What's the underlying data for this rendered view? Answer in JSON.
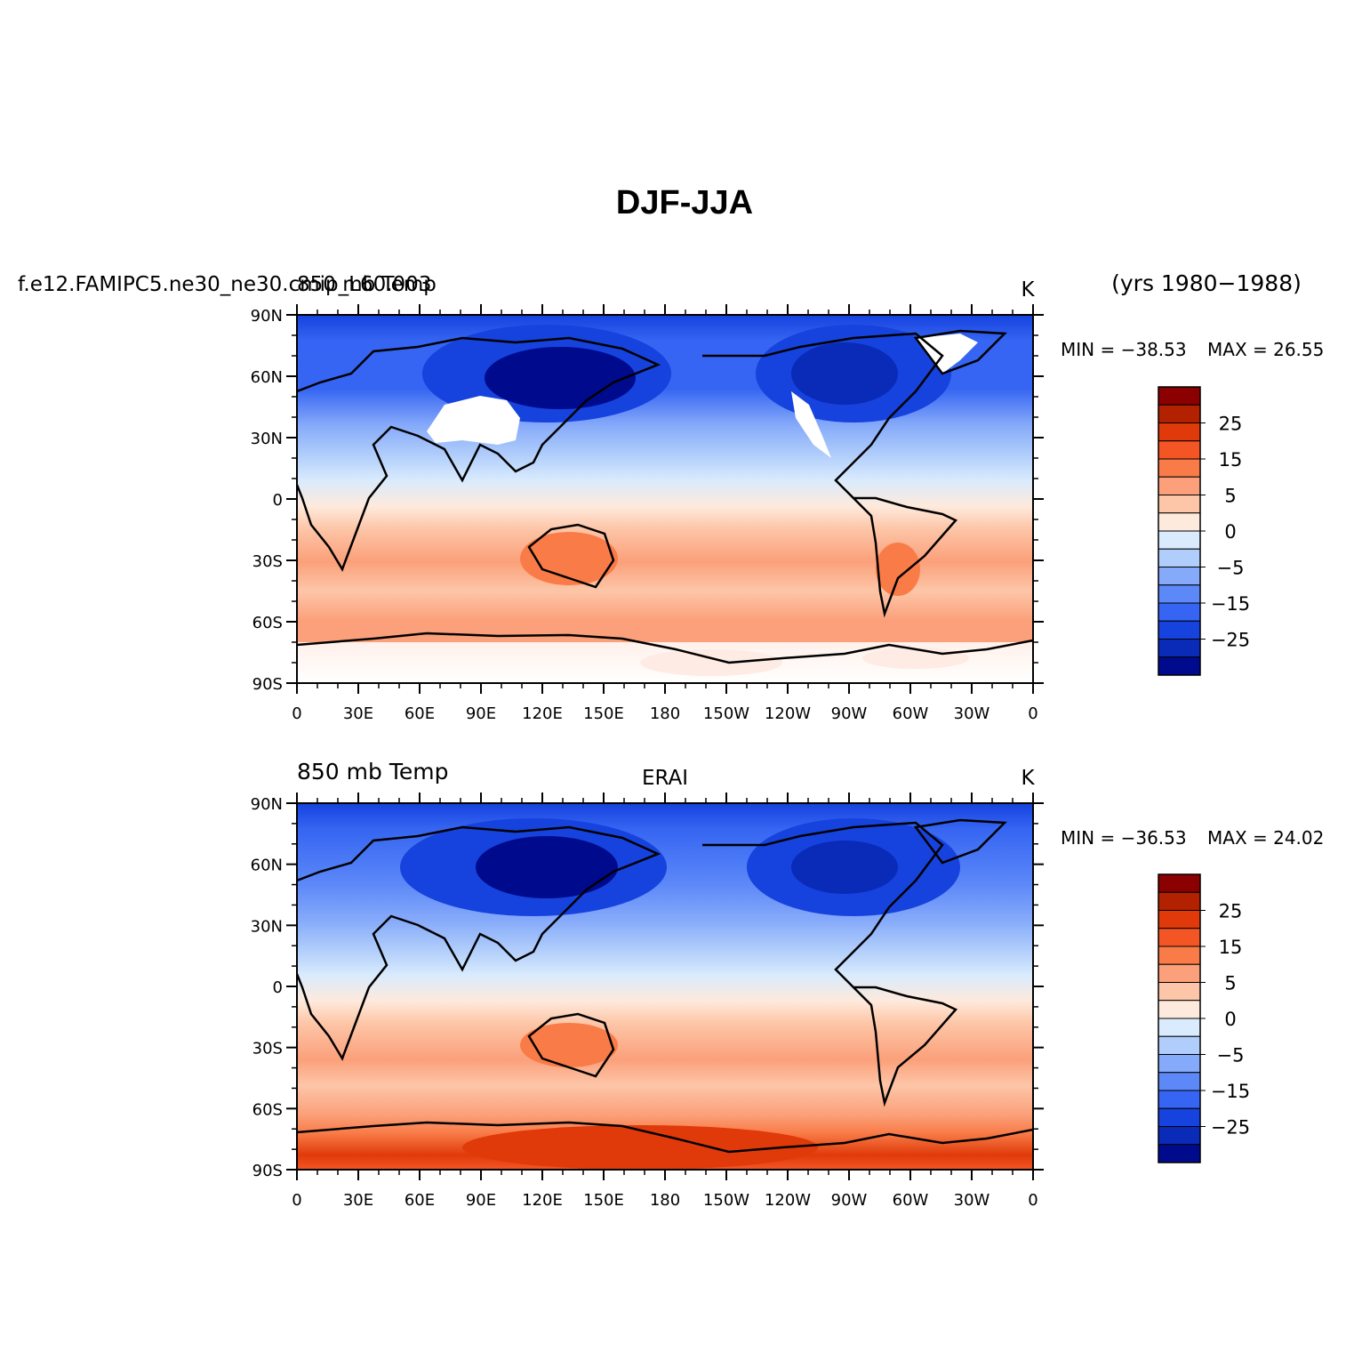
{
  "title": "DJF-JJA",
  "years": "(yrs 1980−1988)",
  "panels": [
    {
      "left_label": "f.e12.FAMIPC5.ne30_ne30.cmip_L60.003",
      "left_label2": "850 mb Temp",
      "center_label": "",
      "units": "K",
      "min_label": "MIN = −38.53",
      "max_label": "MAX =  26.55"
    },
    {
      "left_label": "850 mb Temp",
      "left_label2": "",
      "center_label": "ERAI",
      "units": "K",
      "min_label": "MIN = −36.53",
      "max_label": "MAX =  24.02"
    }
  ],
  "lat_ticks": [
    "90N",
    "60N",
    "30N",
    "0",
    "30S",
    "60S",
    "90S"
  ],
  "lon_ticks": [
    "0",
    "30E",
    "60E",
    "90E",
    "120E",
    "150E",
    "180",
    "150W",
    "120W",
    "90W",
    "60W",
    "30W",
    "0"
  ],
  "colorbar_labels": [
    "25",
    "15",
    "5",
    "0",
    "−5",
    "−15",
    "−25"
  ],
  "colorbar_colors": [
    "#8b0000",
    "#b22200",
    "#e03a0a",
    "#f45525",
    "#f97c48",
    "#fba07a",
    "#fdc6a8",
    "#feeadc",
    "#d9ebfd",
    "#b0cdfb",
    "#86aafa",
    "#5c88f8",
    "#3565f2",
    "#1642de",
    "#0a2ab8",
    "#000a8c"
  ]
}
